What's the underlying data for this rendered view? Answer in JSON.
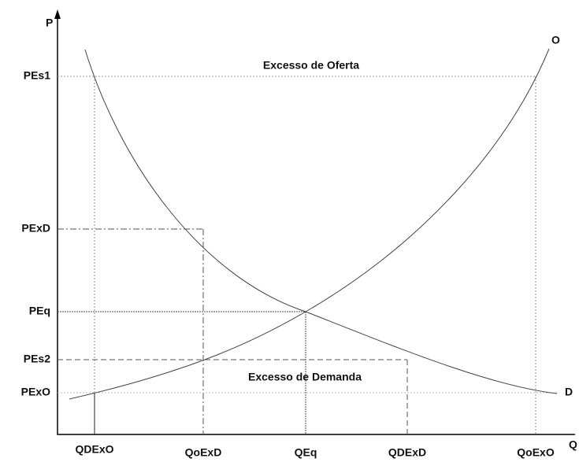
{
  "axes": {
    "y_label": "P",
    "x_label": "Q"
  },
  "curves": {
    "supply": "O",
    "demand": "D"
  },
  "regions": {
    "top": "Excesso de Oferta",
    "bottom": "Excesso de Demanda"
  },
  "y_labels": [
    "PEs1",
    "PExD",
    "PEq",
    "PEs2",
    "PExO"
  ],
  "x_labels": [
    "QDExO",
    "QoExD",
    "QEq",
    "QDExD",
    "QoExO"
  ]
}
